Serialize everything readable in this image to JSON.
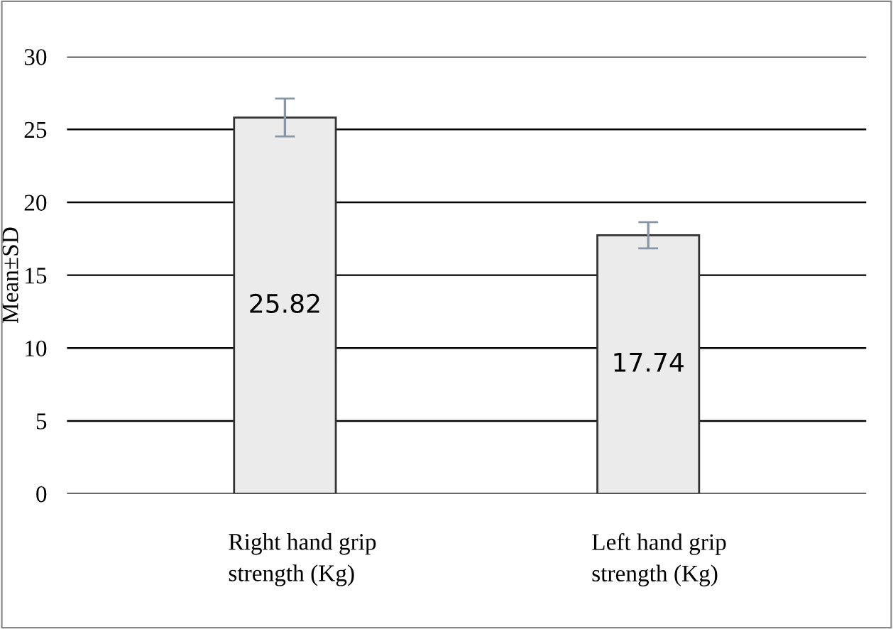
{
  "chart_data": {
    "type": "bar",
    "ylabel": "Mean±SD",
    "categories": [
      "Right hand grip\nstrength (Kg)",
      "Left hand grip\nstrength (Kg)"
    ],
    "values": [
      25.82,
      17.74
    ],
    "errors": [
      1.3,
      0.9
    ],
    "color": "#ebebeb",
    "ylim": [
      0,
      30
    ],
    "yticks": [
      0,
      5,
      10,
      15,
      20,
      25,
      30
    ],
    "grid": "y",
    "data_labels": true
  }
}
